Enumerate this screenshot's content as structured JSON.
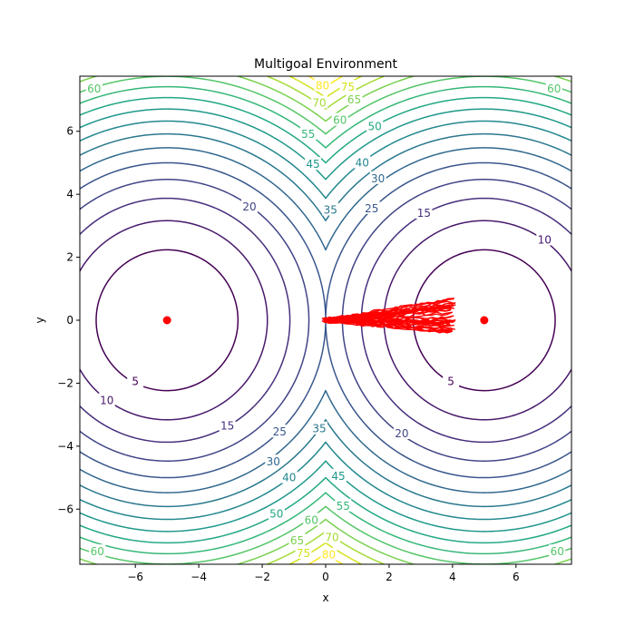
{
  "chart_data": {
    "type": "contour",
    "title": "Multigoal Environment",
    "xlabel": "x",
    "ylabel": "y",
    "xlim": [
      -7.75,
      7.75
    ],
    "ylim": [
      -7.75,
      7.75
    ],
    "xticks": [
      -6,
      -4,
      -2,
      0,
      2,
      4,
      6
    ],
    "yticks": [
      -6,
      -4,
      -2,
      0,
      2,
      4,
      6
    ],
    "xtick_labels": [
      "−6",
      "−4",
      "−2",
      "0",
      "2",
      "4",
      "6"
    ],
    "ytick_labels": [
      "−6",
      "−4",
      "−2",
      "0",
      "2",
      "4",
      "6"
    ],
    "goals": [
      {
        "x": -5,
        "y": 0
      },
      {
        "x": 5,
        "y": 0
      }
    ],
    "contour_levels": [
      5,
      10,
      15,
      20,
      25,
      30,
      35,
      40,
      45,
      50,
      55,
      60,
      65,
      70,
      75,
      80
    ],
    "contour_colors": {
      "5": "#440154",
      "10": "#481a6c",
      "15": "#472f7d",
      "20": "#414487",
      "25": "#39568c",
      "30": "#31688e",
      "35": "#2a788e",
      "40": "#23888e",
      "45": "#1f988b",
      "50": "#22a884",
      "55": "#35b779",
      "60": "#54c568",
      "65": "#7ad151",
      "70": "#a5db36",
      "75": "#d2e21b",
      "80": "#fde725"
    },
    "contour_labels": [
      {
        "text": "60",
        "x": -7.3,
        "y": 7.35,
        "level": 60
      },
      {
        "text": "80",
        "x": -0.1,
        "y": 7.45,
        "level": 80
      },
      {
        "text": "75",
        "x": 0.7,
        "y": 7.4,
        "level": 75
      },
      {
        "text": "70",
        "x": -0.2,
        "y": 6.9,
        "level": 70
      },
      {
        "text": "65",
        "x": 0.9,
        "y": 7.0,
        "level": 65
      },
      {
        "text": "60",
        "x": 0.45,
        "y": 6.35,
        "level": 60
      },
      {
        "text": "50",
        "x": 1.55,
        "y": 6.15,
        "level": 50
      },
      {
        "text": "55",
        "x": -0.55,
        "y": 5.9,
        "level": 55
      },
      {
        "text": "60",
        "x": 7.2,
        "y": 7.35,
        "level": 60
      },
      {
        "text": "45",
        "x": -0.4,
        "y": 4.95,
        "level": 45
      },
      {
        "text": "40",
        "x": 1.15,
        "y": 5.0,
        "level": 40
      },
      {
        "text": "30",
        "x": 1.65,
        "y": 4.5,
        "level": 30
      },
      {
        "text": "35",
        "x": 0.15,
        "y": 3.5,
        "level": 35
      },
      {
        "text": "25",
        "x": 1.45,
        "y": 3.55,
        "level": 25
      },
      {
        "text": "20",
        "x": -2.4,
        "y": 3.6,
        "level": 20
      },
      {
        "text": "15",
        "x": 3.1,
        "y": 3.4,
        "level": 15
      },
      {
        "text": "10",
        "x": 6.9,
        "y": 2.55,
        "level": 10
      },
      {
        "text": "5",
        "x": -6.0,
        "y": -1.95,
        "level": 5
      },
      {
        "text": "5",
        "x": 3.95,
        "y": -1.95,
        "level": 5
      },
      {
        "text": "10",
        "x": -6.9,
        "y": -2.55,
        "level": 10
      },
      {
        "text": "15",
        "x": -3.1,
        "y": -3.35,
        "level": 15
      },
      {
        "text": "20",
        "x": 2.4,
        "y": -3.6,
        "level": 20
      },
      {
        "text": "25",
        "x": -1.45,
        "y": -3.55,
        "level": 25
      },
      {
        "text": "30",
        "x": -1.65,
        "y": -4.5,
        "level": 30
      },
      {
        "text": "35",
        "x": -0.2,
        "y": -3.45,
        "level": 35
      },
      {
        "text": "40",
        "x": -1.15,
        "y": -5.0,
        "level": 40
      },
      {
        "text": "45",
        "x": 0.4,
        "y": -4.95,
        "level": 45
      },
      {
        "text": "50",
        "x": -1.55,
        "y": -6.15,
        "level": 50
      },
      {
        "text": "55",
        "x": 0.55,
        "y": -5.9,
        "level": 55
      },
      {
        "text": "60",
        "x": -0.45,
        "y": -6.35,
        "level": 60
      },
      {
        "text": "65",
        "x": -0.9,
        "y": -7.0,
        "level": 65
      },
      {
        "text": "70",
        "x": 0.2,
        "y": -6.9,
        "level": 70
      },
      {
        "text": "75",
        "x": -0.7,
        "y": -7.4,
        "level": 75
      },
      {
        "text": "80",
        "x": 0.1,
        "y": -7.45,
        "level": 80
      },
      {
        "text": "60",
        "x": -7.2,
        "y": -7.35,
        "level": 60
      },
      {
        "text": "60",
        "x": 7.3,
        "y": -7.35,
        "level": 60
      }
    ],
    "trajectories": {
      "color": "#ff0000",
      "start": {
        "x": 0.0,
        "y": 0.0
      },
      "end_x_range": [
        3.9,
        4.1
      ],
      "end_y_range": [
        -0.4,
        0.75
      ],
      "count": 40
    },
    "grid": false,
    "legend": "none"
  }
}
